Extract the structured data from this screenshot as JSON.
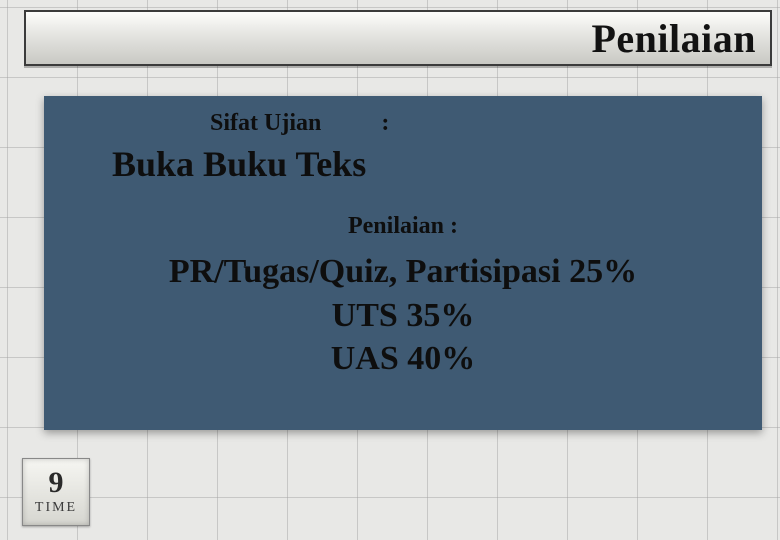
{
  "title": "Penilaian",
  "panel": {
    "exam_label": "Sifat Ujian",
    "exam_colon": ":",
    "exam_value": "Buka Buku Teks",
    "grading_label": "Penilaian :",
    "items": [
      "PR/Tugas/Quiz, Partisipasi 25%",
      "UTS 35%",
      "UAS 40%"
    ]
  },
  "corner": {
    "nine": "9",
    "time": "TIME"
  },
  "colors": {
    "panel_bg": "#3f5a73",
    "grid_bg": "#e8e8e6",
    "grid_line": "rgba(160,160,160,0.45)",
    "bar_border": "#3b3b3b",
    "text": "#121212"
  }
}
